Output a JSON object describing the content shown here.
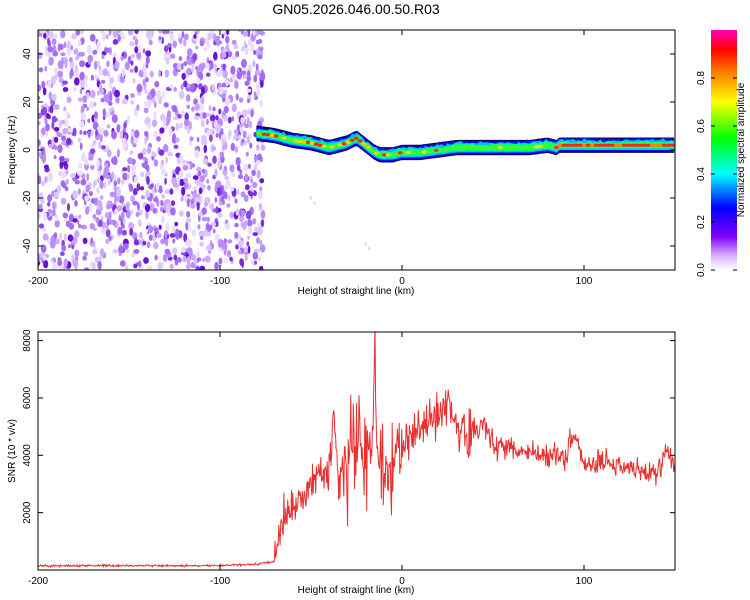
{
  "figure": {
    "title": "GN05.2026.046.00.50.R03"
  },
  "chart_data": [
    {
      "type": "heatmap",
      "name": "spectrogram",
      "xlabel": "Height of straight line (km)",
      "ylabel": "Frequency (Hz)",
      "xlim": [
        -200,
        150
      ],
      "ylim": [
        -50,
        50
      ],
      "xticks": [
        -200,
        -100,
        0,
        100
      ],
      "yticks": [
        -40,
        -20,
        0,
        20,
        40
      ],
      "colorbar": {
        "label": "Normalized spectral amplitude",
        "range": [
          0,
          1
        ],
        "ticks": [
          0,
          0.2,
          0.4,
          0.6,
          0.8
        ],
        "tick_labels": [
          "0.0",
          "0.2",
          "0.4",
          "0.6",
          "0.8"
        ],
        "colormap": [
          "#ffffff",
          "#8000ff",
          "#0000ff",
          "#00ffff",
          "#00ff00",
          "#ffff00",
          "#ff8000",
          "#ff0000",
          "#ff00ff"
        ]
      },
      "noise_region": {
        "x": [
          -200,
          -78
        ],
        "frequency": [
          -50,
          50
        ],
        "amplitude": "low (0.0-0.4)"
      },
      "signal_track": {
        "x": [
          -80,
          -70,
          -60,
          -50,
          -45,
          -40,
          -35,
          -30,
          -25,
          -20,
          -15,
          -12,
          -10,
          -5,
          0,
          10,
          20,
          30,
          40,
          50,
          60,
          70,
          80,
          85,
          86,
          90,
          100,
          110,
          120,
          130,
          140,
          150
        ],
        "frequency": [
          7,
          6,
          4,
          3,
          2,
          1,
          2,
          3,
          5,
          2,
          -1,
          -2,
          -2,
          -2,
          -1,
          -1,
          0,
          1,
          1,
          1,
          1,
          1,
          2,
          1,
          2,
          2,
          2,
          2,
          2,
          2,
          2,
          2
        ],
        "peak_amplitude": 0.9
      }
    },
    {
      "type": "line",
      "name": "snr",
      "xlabel": "Height of straight line (km)",
      "ylabel": "SNR (10 * v/v)",
      "xlim": [
        -200,
        150
      ],
      "ylim": [
        0,
        8300
      ],
      "xticks": [
        -200,
        -100,
        0,
        100
      ],
      "yticks": [
        2000,
        4000,
        6000,
        8000
      ],
      "color": "#e83030",
      "series": [
        {
          "name": "SNR",
          "x": [
            -200,
            -180,
            -160,
            -140,
            -120,
            -100,
            -80,
            -70,
            -68,
            -65,
            -60,
            -55,
            -50,
            -45,
            -40,
            -38,
            -35,
            -30,
            -25,
            -20,
            -16,
            -15,
            -14,
            -12,
            -10,
            -5,
            0,
            5,
            10,
            15,
            20,
            25,
            30,
            40,
            45,
            50,
            60,
            70,
            80,
            90,
            95,
            100,
            110,
            120,
            130,
            140,
            145,
            150
          ],
          "y": [
            150,
            150,
            150,
            150,
            150,
            150,
            200,
            300,
            1200,
            1800,
            2200,
            2400,
            3000,
            3400,
            3200,
            5200,
            3600,
            3800,
            4400,
            4500,
            4700,
            8300,
            4000,
            3600,
            2800,
            3800,
            4200,
            4600,
            5000,
            5300,
            5400,
            5800,
            5100,
            4600,
            5200,
            4400,
            4300,
            4100,
            4000,
            3900,
            4800,
            3700,
            3800,
            3700,
            3500,
            3300,
            4200,
            3500
          ]
        }
      ]
    }
  ]
}
